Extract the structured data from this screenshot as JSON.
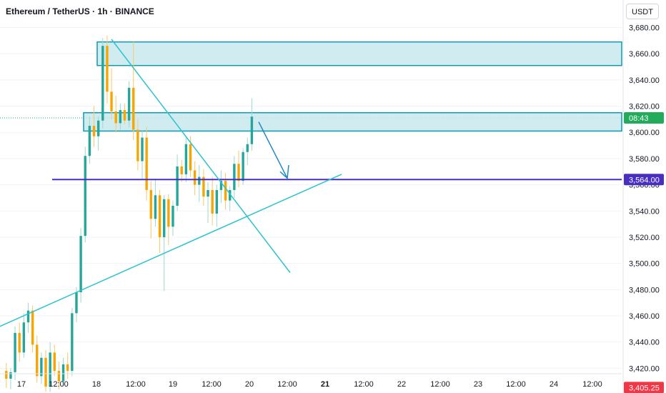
{
  "header": {
    "symbol_title": "Ethereum / TetherUS · 1h · BINANCE",
    "currency": "USDT"
  },
  "chart_data": {
    "type": "candlestick",
    "x_tick_labels": [
      "17",
      "12:00",
      "18",
      "12:00",
      "19",
      "12:00",
      "20",
      "12:00",
      "21",
      "12:00",
      "22",
      "12:00",
      "23",
      "12:00",
      "24",
      "12:00"
    ],
    "y_tick_labels": [
      "3,680.00",
      "3,660.00",
      "3,640.00",
      "3,620.00",
      "3,600.00",
      "3,580.00",
      "3,560.00",
      "3,540.00",
      "3,520.00",
      "3,500.00",
      "3,480.00",
      "3,460.00",
      "3,440.00",
      "3,420.00"
    ],
    "ylim": [
      3398,
      3688
    ],
    "price_labels": {
      "countdown": "08:43",
      "current_price": 3611,
      "level": "3,564.00",
      "level_value": 3564,
      "low": "3,405.25",
      "low_value": 3405.25
    },
    "zones": [
      {
        "from_price": 3651,
        "to_price": 3669
      },
      {
        "from_price": 3601,
        "to_price": 3615
      }
    ],
    "colors": {
      "up": "#26a69a",
      "up_wick": "#9fd7cf",
      "down": "#f7a600",
      "down_wick": "#f9c76a",
      "zone_fill": "#c9e9ef",
      "zone_border": "#0f9aae",
      "trendline": "#2cc3cf",
      "level_line": "#4a2ec2",
      "price_badge": "#22ab5b",
      "level_badge": "#4a2ec2",
      "low_badge": "#f23645"
    },
    "candles": [
      [
        3418,
        3424,
        3405,
        3412
      ],
      [
        3412,
        3420,
        3404,
        3417
      ],
      [
        3417,
        3452,
        3411,
        3447
      ],
      [
        3447,
        3455,
        3425,
        3432
      ],
      [
        3432,
        3462,
        3428,
        3455
      ],
      [
        3455,
        3470,
        3447,
        3464
      ],
      [
        3464,
        3468,
        3432,
        3438
      ],
      [
        3438,
        3445,
        3409,
        3414
      ],
      [
        3414,
        3432,
        3408,
        3428
      ],
      [
        3428,
        3434,
        3402,
        3406
      ],
      [
        3406,
        3440,
        3402,
        3432
      ],
      [
        3432,
        3438,
        3414,
        3418
      ],
      [
        3418,
        3425,
        3404,
        3410
      ],
      [
        3410,
        3428,
        3406,
        3423
      ],
      [
        3423,
        3432,
        3412,
        3418
      ],
      [
        3418,
        3466,
        3414,
        3462
      ],
      [
        3462,
        3482,
        3455,
        3478
      ],
      [
        3478,
        3527,
        3470,
        3521
      ],
      [
        3521,
        3589,
        3516,
        3582
      ],
      [
        3582,
        3612,
        3576,
        3605
      ],
      [
        3605,
        3620,
        3589,
        3597
      ],
      [
        3597,
        3612,
        3586,
        3609
      ],
      [
        3609,
        3672,
        3603,
        3666
      ],
      [
        3666,
        3674,
        3622,
        3631
      ],
      [
        3631,
        3649,
        3610,
        3616
      ],
      [
        3616,
        3628,
        3600,
        3607
      ],
      [
        3607,
        3622,
        3602,
        3617
      ],
      [
        3617,
        3622,
        3606,
        3609
      ],
      [
        3609,
        3639,
        3604,
        3634
      ],
      [
        3634,
        3669,
        3594,
        3602
      ],
      [
        3602,
        3610,
        3571,
        3578
      ],
      [
        3578,
        3601,
        3564,
        3596
      ],
      [
        3596,
        3604,
        3548,
        3556
      ],
      [
        3556,
        3563,
        3519,
        3534
      ],
      [
        3534,
        3564,
        3528,
        3552
      ],
      [
        3552,
        3556,
        3508,
        3520
      ],
      [
        3520,
        3552,
        3479,
        3549
      ],
      [
        3549,
        3553,
        3514,
        3528
      ],
      [
        3528,
        3548,
        3521,
        3544
      ],
      [
        3544,
        3583,
        3540,
        3574
      ],
      [
        3574,
        3579,
        3562,
        3568
      ],
      [
        3568,
        3596,
        3562,
        3591
      ],
      [
        3591,
        3597,
        3566,
        3571
      ],
      [
        3571,
        3578,
        3552,
        3560
      ],
      [
        3560,
        3575,
        3547,
        3566
      ],
      [
        3566,
        3572,
        3544,
        3551
      ],
      [
        3551,
        3562,
        3531,
        3556
      ],
      [
        3556,
        3566,
        3529,
        3538
      ],
      [
        3538,
        3560,
        3528,
        3556
      ],
      [
        3556,
        3571,
        3546,
        3563
      ],
      [
        3563,
        3569,
        3541,
        3548
      ],
      [
        3548,
        3559,
        3540,
        3556
      ],
      [
        3556,
        3582,
        3550,
        3576
      ],
      [
        3576,
        3586,
        3558,
        3563
      ],
      [
        3563,
        3588,
        3560,
        3585
      ],
      [
        3585,
        3596,
        3575,
        3591
      ],
      [
        3591,
        3626,
        3586,
        3612
      ]
    ],
    "drawings": {
      "descending_trendline": {
        "from": [
          3671,
          0
        ],
        "to": [
          3493,
          1
        ]
      },
      "ascending_trendline": {
        "from": [
          3452,
          0
        ],
        "to": [
          3568,
          1
        ]
      },
      "arrow": {
        "from": [
          3608,
          0
        ],
        "to": [
          3565,
          1
        ]
      }
    }
  }
}
